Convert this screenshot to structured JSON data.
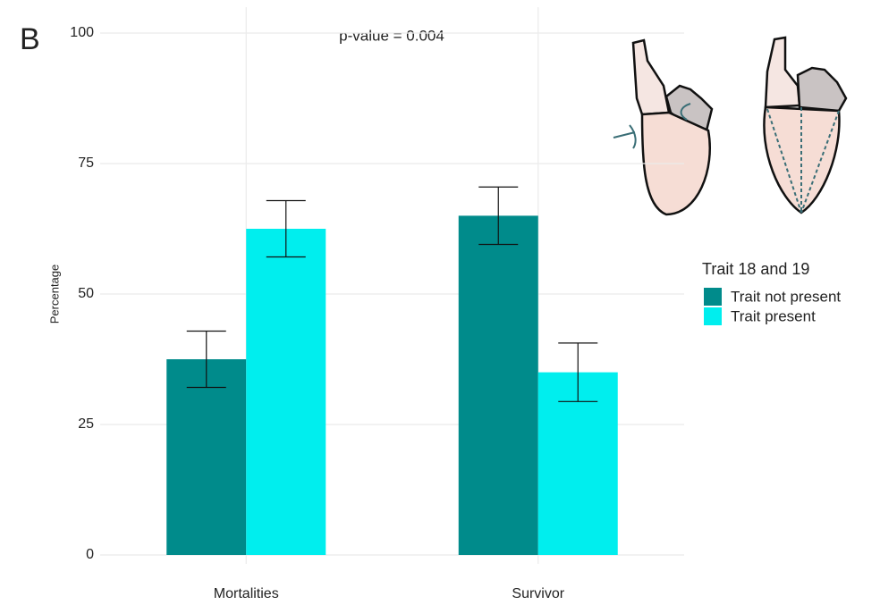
{
  "panel_label": "B",
  "chart_data": {
    "type": "bar",
    "annotation": "p-value = 0.004",
    "y_label": "Percentage",
    "categories": [
      "Mortalities",
      "Survivor"
    ],
    "legend_title": "Trait 18 and 19",
    "series": [
      {
        "name": "Trait not present",
        "color": "#008B8B",
        "values": [
          37.5,
          65
        ],
        "errors": [
          5.4,
          5.5
        ]
      },
      {
        "name": "Trait present",
        "color": "#00EEEE",
        "values": [
          62.5,
          35
        ],
        "errors": [
          5.4,
          5.6
        ]
      }
    ],
    "ylim": [
      0,
      100
    ],
    "yticks": [
      0,
      25,
      50,
      75,
      100
    ],
    "grid": true
  }
}
